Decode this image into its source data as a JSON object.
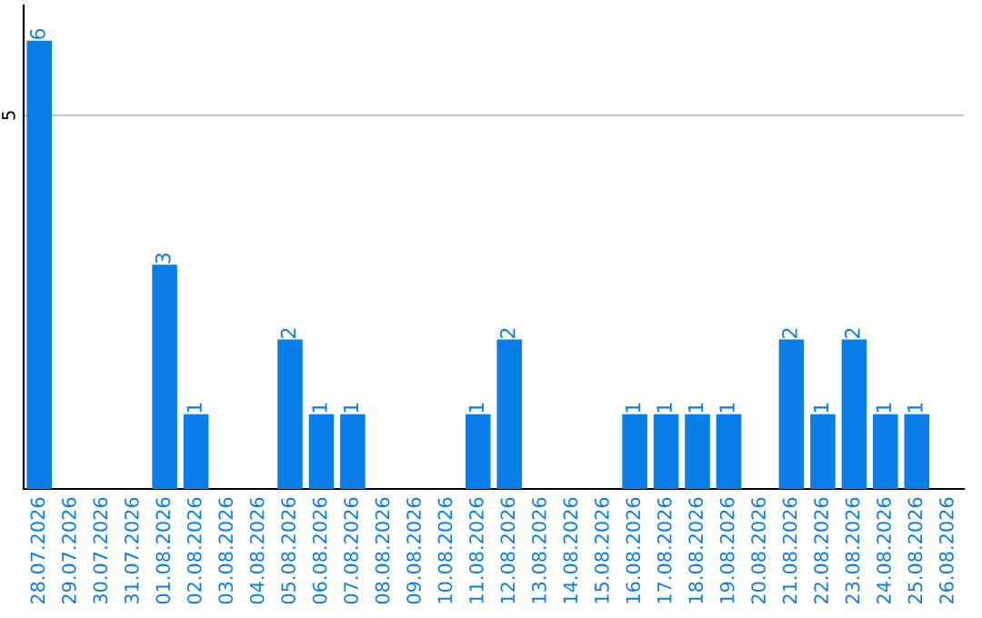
{
  "chart_data": {
    "type": "bar",
    "categories": [
      "28.07.2026",
      "29.07.2026",
      "30.07.2026",
      "31.07.2026",
      "01.08.2026",
      "02.08.2026",
      "03.08.2026",
      "04.08.2026",
      "05.08.2026",
      "06.08.2026",
      "07.08.2026",
      "08.08.2026",
      "09.08.2026",
      "10.08.2026",
      "11.08.2026",
      "12.08.2026",
      "13.08.2026",
      "14.08.2026",
      "15.08.2026",
      "16.08.2026",
      "17.08.2026",
      "18.08.2026",
      "19.08.2026",
      "20.08.2026",
      "21.08.2026",
      "22.08.2026",
      "23.08.2026",
      "24.08.2026",
      "25.08.2026",
      "26.08.2026"
    ],
    "values": [
      6,
      0,
      0,
      0,
      3,
      1,
      0,
      0,
      2,
      1,
      1,
      0,
      0,
      0,
      1,
      2,
      0,
      0,
      0,
      1,
      1,
      1,
      1,
      0,
      2,
      1,
      2,
      1,
      1,
      0
    ],
    "value_labels": [
      "6",
      null,
      null,
      null,
      "3",
      "1",
      null,
      null,
      "2",
      "1",
      "1",
      null,
      null,
      null,
      "1",
      "2",
      null,
      null,
      null,
      "1",
      "1",
      "1",
      "1",
      null,
      "2",
      "1",
      "2",
      "1",
      "1",
      null
    ],
    "color": "#0a7ee8",
    "ylim": [
      0,
      6.47
    ],
    "yticks": [
      5
    ],
    "grid": "y"
  }
}
